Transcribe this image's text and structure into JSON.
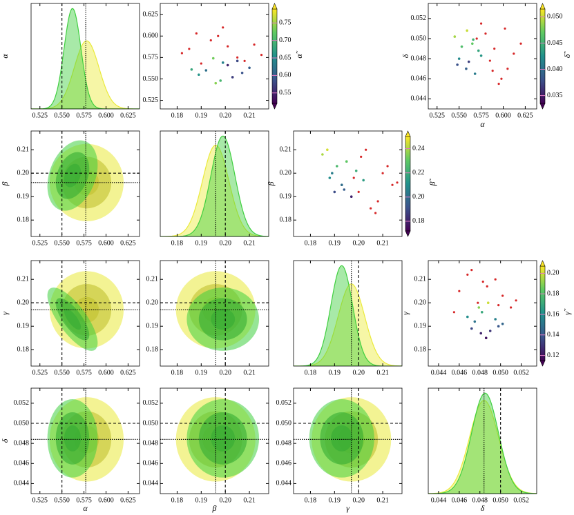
{
  "chart_data": {
    "type": "corner",
    "params": [
      {
        "label": "α",
        "lim": [
          0.515,
          0.638
        ],
        "ticks": [
          0.525,
          {
            "value": 0.55,
            "label": "0.550"
          },
          0.575,
          {
            "value": 0.6,
            "label": "0.600"
          },
          0.625
        ],
        "dashed": 0.55,
        "dotted": 0.577
      },
      {
        "label": "β",
        "lim": [
          0.173,
          0.218
        ],
        "ticks": [
          0.18,
          0.19,
          {
            "value": 0.2,
            "label": "0.20"
          },
          0.21
        ],
        "dashed": 0.2,
        "dotted": 0.196
      },
      {
        "label": "γ",
        "lim": [
          0.173,
          0.218
        ],
        "ticks": [
          0.18,
          0.19,
          {
            "value": 0.2,
            "label": "0.20"
          },
          0.21
        ],
        "dashed": 0.2,
        "dotted": 0.197
      },
      {
        "label": "δ",
        "lim": [
          0.043,
          0.0535
        ],
        "ticks": [
          0.044,
          0.046,
          0.048,
          {
            "value": 0.05,
            "label": "0.050"
          },
          0.052
        ],
        "dashed": 0.05,
        "dotted": 0.0484
      }
    ],
    "series": [
      {
        "color": "#eaea3a",
        "mean": [
          0.578,
          0.196,
          0.197,
          0.0484
        ],
        "sd": [
          0.014,
          0.0055,
          0.0055,
          0.0014
        ],
        "corr": [
          [
            1,
            0,
            0,
            0
          ],
          [
            0,
            1,
            0,
            0
          ],
          [
            0,
            0,
            1,
            0
          ],
          [
            0,
            0,
            0,
            1
          ]
        ]
      },
      {
        "color": "#3fcf3f",
        "mean": [
          0.562,
          0.199,
          0.193,
          0.0485
        ],
        "sd": [
          0.0095,
          0.005,
          0.0045,
          0.0013
        ],
        "corr": [
          [
            1,
            0.3,
            -0.75,
            0
          ],
          [
            0.3,
            1,
            0,
            0
          ],
          [
            -0.75,
            0,
            1,
            0
          ],
          [
            0,
            0,
            0,
            1
          ]
        ]
      }
    ],
    "scatter": [
      {
        "x_param": 1,
        "y_param": 0,
        "red_color": "#d62728",
        "colorbar": {
          "label": "α̃",
          "lim": [
            0.52,
            0.79
          ],
          "ticks": [
            0.55,
            {
              "value": 0.6,
              "label": "0.60"
            },
            0.65,
            {
              "value": 0.7,
              "label": "0.70"
            },
            0.75
          ]
        },
        "points": {
          "x": [
            0.192,
            0.205,
            0.198,
            0.201,
            0.189,
            0.21,
            0.195,
            0.203,
            0.199,
            0.186,
            0.207,
            0.196
          ],
          "y": [
            0.56,
            0.571,
            0.548,
            0.566,
            0.555,
            0.563,
            0.574,
            0.552,
            0.569,
            0.561,
            0.557,
            0.545
          ],
          "c": [
            0.62,
            0.58,
            0.7,
            0.55,
            0.66,
            0.6,
            0.73,
            0.57,
            0.64,
            0.68,
            0.59,
            0.74
          ]
        },
        "red": {
          "x": [
            0.185,
            0.197,
            0.205,
            0.19,
            0.212,
            0.199,
            0.182,
            0.194,
            0.208,
            0.201,
            0.188,
            0.215
          ],
          "y": [
            0.585,
            0.6,
            0.575,
            0.568,
            0.59,
            0.61,
            0.58,
            0.595,
            0.571,
            0.588,
            0.603,
            0.578
          ]
        }
      },
      {
        "x_param": 0,
        "y_param": 3,
        "red_color": "#d62728",
        "colorbar": {
          "label": "δ̃",
          "lim": [
            0.0335,
            0.0515
          ],
          "ticks": [
            0.035,
            {
              "value": 0.04,
              "label": "0.040"
            },
            0.045,
            {
              "value": 0.05,
              "label": "0.050"
            }
          ]
        },
        "points": {
          "x": [
            0.55,
            0.565,
            0.558,
            0.572,
            0.545,
            0.561,
            0.568,
            0.553,
            0.575,
            0.559,
            0.548,
            0.566
          ],
          "y": [
            0.048,
            0.0495,
            0.047,
            0.0488,
            0.0502,
            0.0477,
            0.0465,
            0.0492,
            0.0483,
            0.0508,
            0.0474,
            0.0499
          ],
          "c": [
            0.042,
            0.047,
            0.039,
            0.044,
            0.049,
            0.037,
            0.041,
            0.046,
            0.043,
            0.05,
            0.038,
            0.045
          ]
        },
        "red": {
          "x": [
            0.59,
            0.605,
            0.58,
            0.598,
            0.612,
            0.575,
            0.585,
            0.62,
            0.595,
            0.57,
            0.602,
            0.588
          ],
          "y": [
            0.049,
            0.047,
            0.0505,
            0.046,
            0.0485,
            0.0515,
            0.0478,
            0.0495,
            0.0455,
            0.05,
            0.051,
            0.0468
          ]
        }
      },
      {
        "x_param": 2,
        "y_param": 1,
        "red_color": "#d62728",
        "colorbar": {
          "label": "β̃",
          "lim": [
            0.172,
            0.25
          ],
          "ticks": [
            0.18,
            {
              "value": 0.2,
              "label": "0.20"
            },
            0.22,
            0.24
          ]
        },
        "points": {
          "x": [
            0.188,
            0.195,
            0.19,
            0.199,
            0.185,
            0.193,
            0.197,
            0.191,
            0.202,
            0.187,
            0.194,
            0.189
          ],
          "y": [
            0.198,
            0.205,
            0.192,
            0.201,
            0.208,
            0.195,
            0.19,
            0.203,
            0.197,
            0.21,
            0.193,
            0.2
          ],
          "c": [
            0.21,
            0.23,
            0.19,
            0.22,
            0.24,
            0.2,
            0.18,
            0.225,
            0.215,
            0.245,
            0.195,
            0.205
          ]
        },
        "red": {
          "x": [
            0.2,
            0.21,
            0.205,
            0.195,
            0.214,
            0.203,
            0.208,
            0.198,
            0.212,
            0.207,
            0.201,
            0.216
          ],
          "y": [
            0.192,
            0.2,
            0.185,
            0.205,
            0.195,
            0.21,
            0.188,
            0.198,
            0.203,
            0.183,
            0.207,
            0.196
          ]
        }
      },
      {
        "x_param": 3,
        "y_param": 2,
        "red_color": "#d62728",
        "colorbar": {
          "label": "γ̃",
          "lim": [
            0.115,
            0.207
          ],
          "ticks": [
            0.12,
            0.14,
            0.16,
            0.18,
            {
              "value": 0.2,
              "label": "0.20"
            }
          ]
        },
        "points": {
          "x": [
            0.0475,
            0.049,
            0.0482,
            0.0498,
            0.0468,
            0.0486,
            0.0479,
            0.0495,
            0.0472,
            0.0488,
            0.0502,
            0.0481
          ],
          "y": [
            0.192,
            0.188,
            0.196,
            0.19,
            0.194,
            0.185,
            0.198,
            0.193,
            0.189,
            0.2,
            0.191,
            0.187
          ],
          "c": [
            0.15,
            0.13,
            0.17,
            0.14,
            0.16,
            0.12,
            0.19,
            0.155,
            0.135,
            0.2,
            0.145,
            0.125
          ]
        },
        "red": {
          "x": [
            0.046,
            0.0495,
            0.0478,
            0.051,
            0.0468,
            0.0502,
            0.0487,
            0.0455,
            0.0515,
            0.0472,
            0.0498,
            0.0483
          ],
          "y": [
            0.205,
            0.21,
            0.2,
            0.198,
            0.212,
            0.203,
            0.207,
            0.196,
            0.201,
            0.214,
            0.199,
            0.209
          ]
        }
      }
    ]
  }
}
